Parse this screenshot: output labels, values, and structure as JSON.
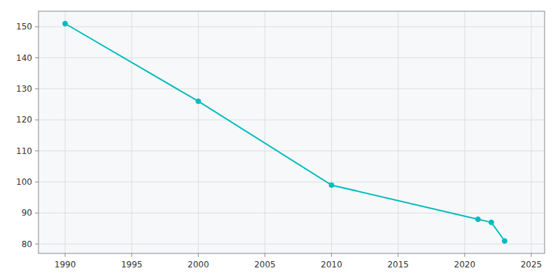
{
  "chart_data": {
    "type": "line",
    "x": [
      1990,
      2000,
      2010,
      2021,
      2022,
      2023
    ],
    "values": [
      151,
      126,
      99,
      88,
      87,
      81
    ],
    "color": "#00BCBC",
    "marker": "o",
    "xlim": [
      1988,
      2026
    ],
    "ylim": [
      77,
      155
    ],
    "xticks": [
      1990,
      1995,
      2000,
      2005,
      2010,
      2015,
      2020,
      2025
    ],
    "yticks": [
      80,
      90,
      100,
      110,
      120,
      130,
      140,
      150
    ],
    "grid": true
  }
}
